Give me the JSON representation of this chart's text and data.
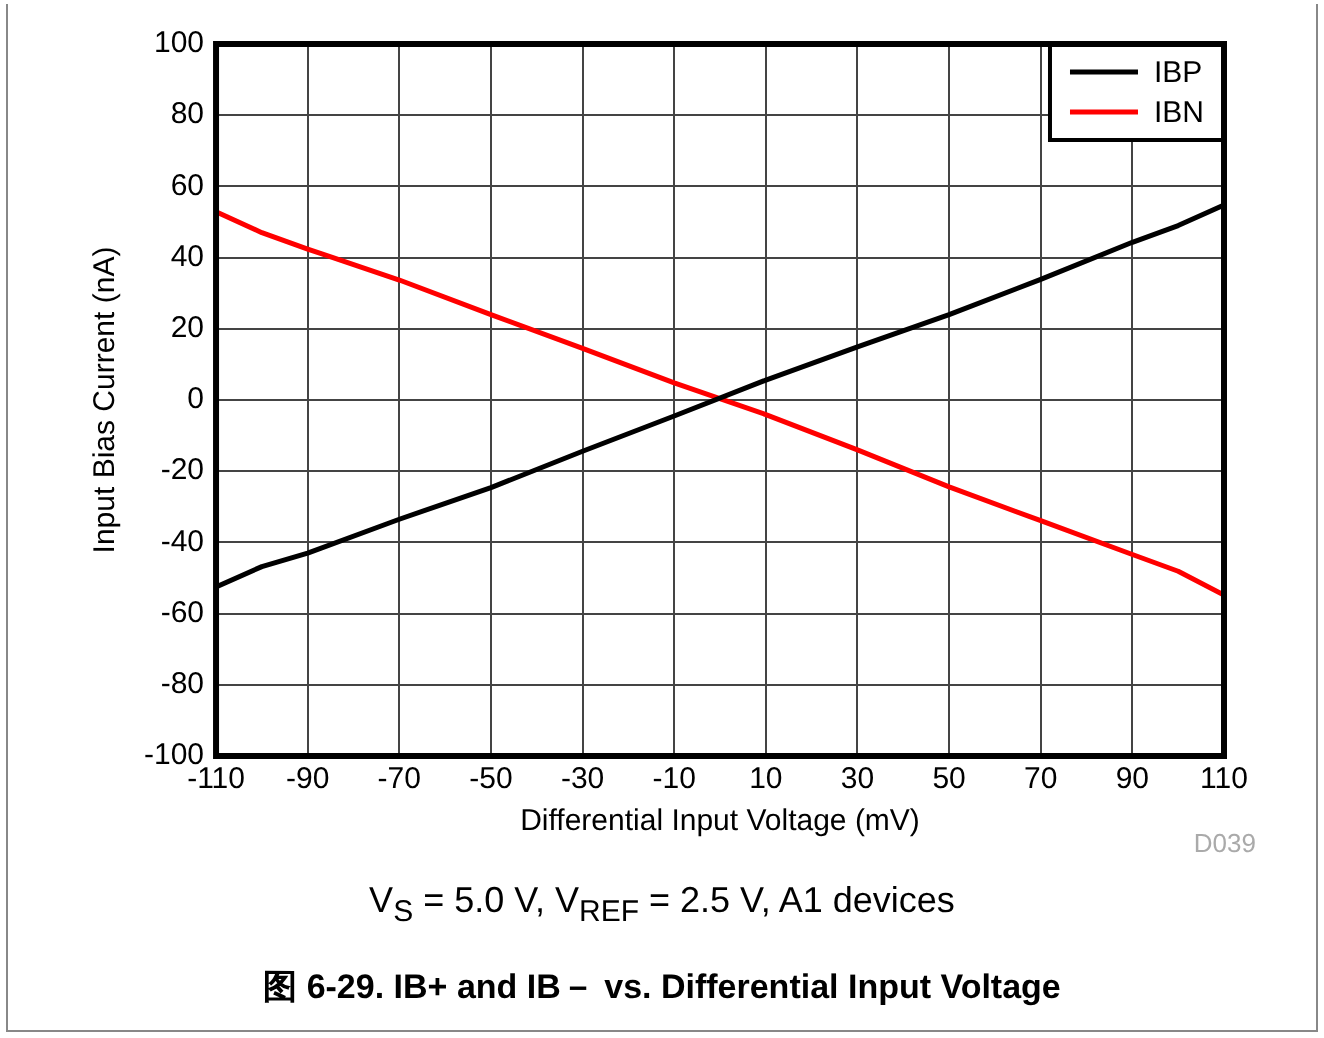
{
  "chart_data": {
    "type": "line",
    "title": "图 6-29. IB+ and IB－ vs. Differential Input Voltage",
    "subtitle": "V$_{S}$ = 5.0 V, V$_{REF}$ = 2.5 V, A1 devices",
    "xlabel": "Differential Input Voltage (mV)",
    "ylabel": "Input Bias Current (nA)",
    "annotations": [
      "D039"
    ],
    "x": [
      -110,
      -100,
      -90,
      -70,
      -50,
      -30,
      -10,
      10,
      30,
      50,
      70,
      90,
      100,
      110
    ],
    "series": [
      {
        "name": "IBP",
        "color": "#000000",
        "values": [
          -52.5,
          -46.8,
          -43,
          -33.5,
          -24.6,
          -14.4,
          -4.5,
          5.6,
          14.9,
          24,
          33.9,
          44.3,
          49,
          54.8
        ]
      },
      {
        "name": "IBN",
        "color": "#ff0000",
        "values": [
          52.9,
          47,
          42.4,
          33.7,
          24,
          14.5,
          4.8,
          -4.1,
          -14,
          -24.4,
          -33.9,
          -43.4,
          -48.1,
          -54.8
        ]
      }
    ],
    "xlim": [
      -110,
      110
    ],
    "xticks": [
      -110,
      -90,
      -70,
      -50,
      -30,
      -10,
      10,
      30,
      50,
      70,
      90,
      110
    ],
    "ylim": [
      -100,
      100
    ],
    "yticks": [
      -100,
      -80,
      -60,
      -40,
      -20,
      0,
      20,
      40,
      60,
      80,
      100
    ],
    "grid": true,
    "legend": "top right",
    "marker": "none",
    "line_style": "solid"
  }
}
